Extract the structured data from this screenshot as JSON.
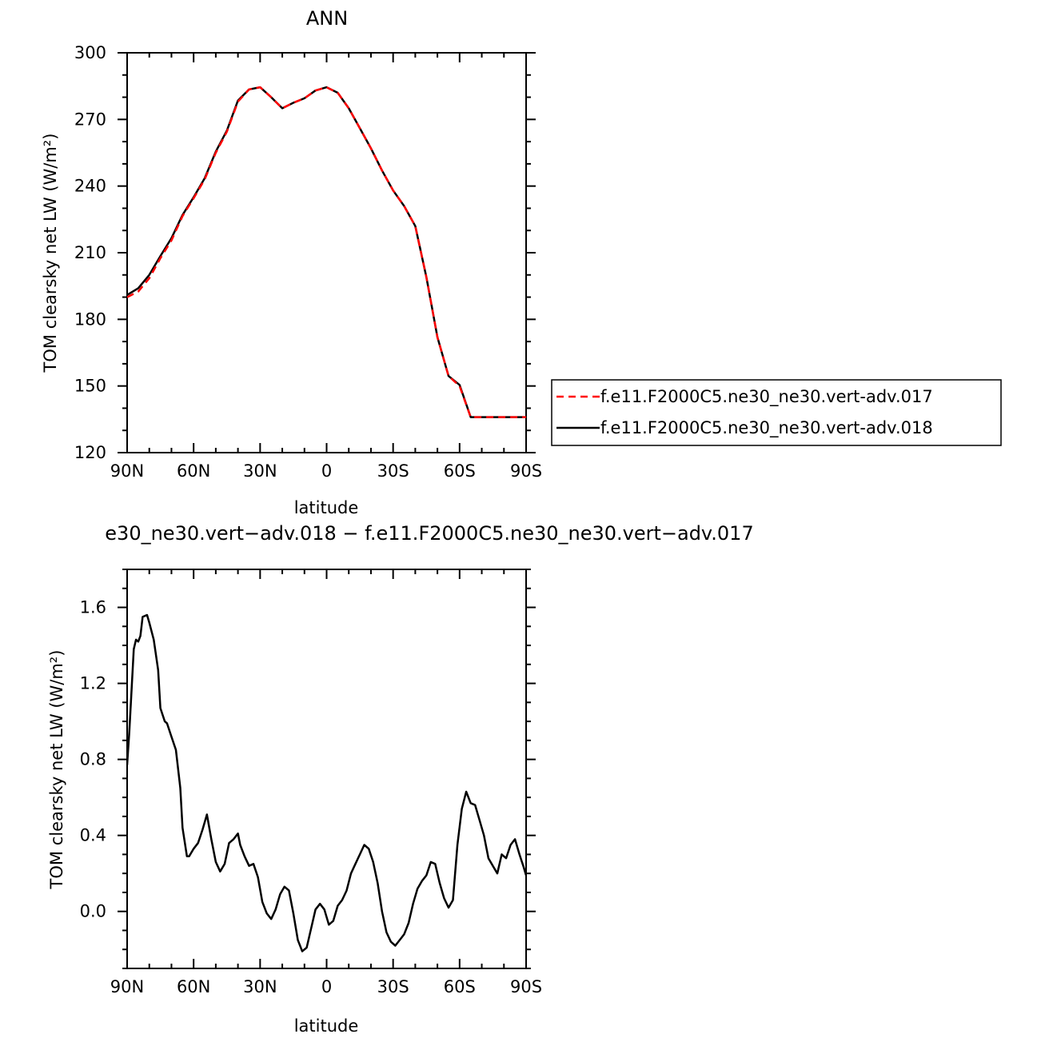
{
  "chart_data": [
    {
      "type": "line",
      "title": "ANN",
      "xlabel": "latitude",
      "ylabel": "TOM clearsky net LW (W/m²)",
      "xlim": [
        90,
        -90
      ],
      "ylim": [
        120,
        300
      ],
      "x_ticks": [
        90,
        60,
        30,
        0,
        -30,
        -60,
        -90
      ],
      "x_tick_labels": [
        "90N",
        "60N",
        "30N",
        "0",
        "30S",
        "60S",
        "90S"
      ],
      "y_ticks": [
        120,
        150,
        180,
        210,
        240,
        270,
        300
      ],
      "y_tick_labels": [
        "120",
        "150",
        "180",
        "210",
        "240",
        "270",
        "300"
      ],
      "legend_position": "right",
      "series": [
        {
          "name": "f.e11.F2000C5.ne30_ne30.vert-adv.017",
          "color": "#ff0000",
          "dash": "dashed",
          "x": [
            90,
            85,
            80,
            75,
            70,
            65,
            60,
            55,
            50,
            45,
            40,
            35,
            30,
            25,
            20,
            15,
            10,
            5,
            0,
            -5,
            -10,
            -15,
            -20,
            -25,
            -30,
            -35,
            -40,
            -45,
            -50,
            -55,
            -60,
            -65,
            -70,
            -75,
            -80,
            -85,
            -90
          ],
          "y": [
            190.0,
            192.5,
            198.5,
            207.5,
            215.5,
            226.5,
            234.5,
            243.0,
            255.0,
            264.5,
            278.0,
            283.5,
            284.5,
            280.0,
            275.0,
            277.5,
            279.5,
            283.0,
            284.5,
            282.0,
            275.0,
            266.0,
            257.0,
            247.0,
            238.0,
            231.0,
            222.0,
            199.0,
            172.0,
            154.5,
            150.0,
            136.0,
            136.0,
            136.0,
            136.0,
            136.0,
            136.0
          ]
        },
        {
          "name": "f.e11.F2000C5.ne30_ne30.vert-adv.018",
          "color": "#000000",
          "dash": "solid",
          "x": [
            90,
            85,
            80,
            75,
            70,
            65,
            60,
            55,
            50,
            45,
            40,
            35,
            30,
            25,
            20,
            15,
            10,
            5,
            0,
            -5,
            -10,
            -15,
            -20,
            -25,
            -30,
            -35,
            -40,
            -45,
            -50,
            -55,
            -60,
            -65,
            -70,
            -75,
            -80,
            -85,
            -90
          ],
          "y": [
            191.0,
            194.0,
            200.0,
            208.5,
            216.5,
            227.0,
            235.0,
            243.5,
            255.5,
            265.0,
            278.5,
            283.5,
            284.5,
            280.0,
            275.0,
            277.5,
            279.5,
            283.0,
            284.5,
            282.0,
            275.0,
            266.0,
            257.0,
            247.0,
            238.0,
            231.0,
            222.0,
            199.0,
            172.0,
            154.5,
            150.5,
            136.0,
            136.0,
            136.0,
            136.0,
            136.0,
            136.0
          ]
        }
      ]
    },
    {
      "type": "line",
      "title": "e30_ne30.vert−adv.018 − f.e11.F2000C5.ne30_ne30.vert−adv.017",
      "xlabel": "latitude",
      "ylabel": "TOM clearsky net LW (W/m²)",
      "xlim": [
        90,
        -90
      ],
      "ylim": [
        -0.3,
        1.8
      ],
      "x_ticks": [
        90,
        60,
        30,
        0,
        -30,
        -60,
        -90
      ],
      "x_tick_labels": [
        "90N",
        "60N",
        "30N",
        "0",
        "30S",
        "60S",
        "90S"
      ],
      "y_ticks": [
        0.0,
        0.4,
        0.8,
        1.2,
        1.6
      ],
      "y_tick_labels": [
        "0.0",
        "0.4",
        "0.8",
        "1.2",
        "1.6"
      ],
      "series": [
        {
          "color": "#000000",
          "dash": "solid",
          "x": [
            90,
            89,
            87,
            86,
            85,
            84,
            83,
            81,
            80,
            78,
            76,
            75,
            73,
            72,
            70,
            68,
            66,
            65,
            63,
            62,
            60,
            58,
            56,
            54,
            52,
            50,
            48,
            46,
            44,
            42,
            40,
            39,
            37,
            35,
            33,
            31,
            29,
            27,
            25,
            23,
            21,
            19,
            17,
            15,
            13,
            11,
            9,
            7,
            5,
            3,
            1,
            -1,
            -3,
            -5,
            -7,
            -9,
            -11,
            -13,
            -15,
            -17,
            -19,
            -21,
            -23,
            -25,
            -27,
            -29,
            -31,
            -33,
            -35,
            -37,
            -39,
            -41,
            -43,
            -45,
            -47,
            -49,
            -51,
            -53,
            -55,
            -57,
            -59,
            -61,
            -63,
            -65,
            -67,
            -69,
            -71,
            -73,
            -75,
            -77,
            -79,
            -81,
            -83,
            -85,
            -87,
            -89,
            -90
          ],
          "y": [
            0.77,
            0.95,
            1.38,
            1.43,
            1.42,
            1.45,
            1.55,
            1.56,
            1.52,
            1.43,
            1.27,
            1.07,
            1.0,
            0.99,
            0.92,
            0.85,
            0.65,
            0.44,
            0.29,
            0.29,
            0.33,
            0.36,
            0.43,
            0.51,
            0.38,
            0.26,
            0.21,
            0.25,
            0.36,
            0.38,
            0.41,
            0.35,
            0.29,
            0.24,
            0.25,
            0.18,
            0.05,
            -0.01,
            -0.04,
            0.01,
            0.09,
            0.13,
            0.11,
            -0.01,
            -0.15,
            -0.21,
            -0.19,
            -0.09,
            0.01,
            0.04,
            0.01,
            -0.07,
            -0.05,
            0.03,
            0.06,
            0.11,
            0.2,
            0.25,
            0.3,
            0.35,
            0.33,
            0.26,
            0.15,
            0.0,
            -0.11,
            -0.16,
            -0.18,
            -0.15,
            -0.12,
            -0.06,
            0.04,
            0.12,
            0.16,
            0.19,
            0.26,
            0.25,
            0.15,
            0.07,
            0.02,
            0.06,
            0.35,
            0.54,
            0.63,
            0.57,
            0.56,
            0.48,
            0.4,
            0.28,
            0.24,
            0.2,
            0.3,
            0.28,
            0.35,
            0.38,
            0.3,
            0.23,
            0.19
          ]
        }
      ]
    }
  ]
}
